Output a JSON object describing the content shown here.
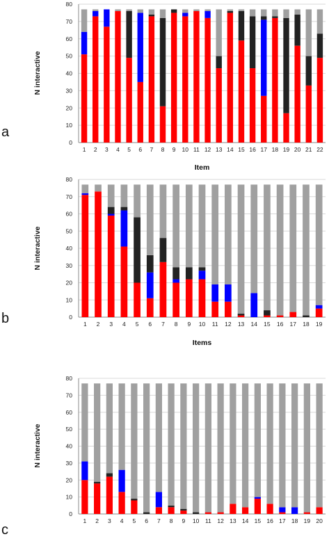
{
  "figure": {
    "panels": [
      "a",
      "b",
      "c"
    ]
  },
  "colors": {
    "red": "#ff0000",
    "blue": "#0000ff",
    "black": "#222222",
    "gray": "#a0a0a0",
    "grid": "#d8d8d8",
    "axis": "#888888"
  },
  "chart_data": [
    {
      "panel": "a",
      "type": "bar",
      "stacked": true,
      "ylabel": "N interactive",
      "xlabel": "Item",
      "ylim": [
        0,
        80
      ],
      "yticks": [
        0,
        10,
        20,
        30,
        40,
        50,
        60,
        70,
        80
      ],
      "grid": true,
      "categories": [
        "1",
        "2",
        "3",
        "4",
        "5",
        "6",
        "7",
        "8",
        "9",
        "10",
        "11",
        "12",
        "13",
        "14",
        "15",
        "16",
        "17",
        "18",
        "19",
        "20",
        "21",
        "22"
      ],
      "series": [
        {
          "color": "red",
          "values": [
            51,
            73,
            67,
            76,
            49,
            35,
            73,
            21,
            75,
            73,
            76,
            72,
            43,
            75,
            59,
            43,
            27,
            72,
            17,
            56,
            33,
            49
          ]
        },
        {
          "color": "blue",
          "values": [
            13,
            3,
            10,
            0,
            0,
            40,
            0,
            0,
            0,
            2,
            0,
            4,
            0,
            0,
            0,
            0,
            44,
            0,
            0,
            0,
            0,
            0
          ]
        },
        {
          "color": "black",
          "values": [
            0,
            0,
            0,
            0,
            27,
            0,
            1,
            51,
            2,
            0,
            0,
            0,
            7,
            1,
            17,
            30,
            2,
            1,
            55,
            18,
            17,
            14
          ]
        },
        {
          "color": "gray",
          "values": [
            13,
            1,
            0,
            1,
            1,
            2,
            3,
            5,
            0,
            2,
            1,
            1,
            27,
            1,
            1,
            4,
            4,
            4,
            5,
            3,
            27,
            14
          ]
        }
      ]
    },
    {
      "panel": "b",
      "type": "bar",
      "stacked": true,
      "ylabel": "N interactive",
      "xlabel": "Items",
      "ylim": [
        0,
        80
      ],
      "yticks": [
        0,
        10,
        20,
        30,
        40,
        50,
        60,
        70,
        80
      ],
      "grid": true,
      "categories": [
        "1",
        "2",
        "3",
        "4",
        "5",
        "6",
        "7",
        "8",
        "9",
        "10",
        "11",
        "12",
        "13",
        "14",
        "15",
        "16",
        "17",
        "18",
        "19"
      ],
      "series": [
        {
          "color": "red",
          "values": [
            71,
            73,
            59,
            41,
            20,
            11,
            32,
            20,
            22,
            22,
            9,
            9,
            1,
            0,
            1,
            1,
            3,
            0,
            5
          ]
        },
        {
          "color": "blue",
          "values": [
            1,
            0,
            1,
            21,
            0,
            15,
            0,
            2,
            0,
            5,
            10,
            10,
            0,
            14,
            0,
            0,
            0,
            0,
            2
          ]
        },
        {
          "color": "black",
          "values": [
            0,
            0,
            4,
            2,
            38,
            10,
            14,
            7,
            7,
            2,
            0,
            0,
            1,
            0,
            3,
            0,
            0,
            1,
            0
          ]
        },
        {
          "color": "gray",
          "values": [
            5,
            4,
            13,
            13,
            19,
            41,
            31,
            48,
            48,
            48,
            58,
            58,
            75,
            63,
            73,
            76,
            74,
            76,
            70
          ]
        }
      ]
    },
    {
      "panel": "c",
      "type": "bar",
      "stacked": true,
      "ylabel": "N interactive",
      "xlabel": "",
      "ylim": [
        0,
        80
      ],
      "yticks": [
        0,
        10,
        20,
        30,
        40,
        50,
        60,
        70,
        80
      ],
      "grid": true,
      "categories": [
        "1",
        "2",
        "3",
        "4",
        "5",
        "6",
        "7",
        "8",
        "9",
        "10",
        "11",
        "12",
        "13",
        "14",
        "15",
        "16",
        "17",
        "18",
        "19",
        "20"
      ],
      "series": [
        {
          "color": "red",
          "values": [
            20,
            18,
            22,
            13,
            8,
            0,
            4,
            4,
            2,
            0,
            1,
            1,
            6,
            4,
            9,
            6,
            1,
            0,
            1,
            4
          ]
        },
        {
          "color": "blue",
          "values": [
            11,
            0,
            0,
            13,
            0,
            0,
            9,
            0,
            0,
            0,
            0,
            0,
            0,
            0,
            1,
            0,
            3,
            4,
            0,
            0
          ]
        },
        {
          "color": "black",
          "values": [
            0,
            1,
            2,
            0,
            1,
            1,
            0,
            1,
            1,
            1,
            0,
            0,
            0,
            0,
            0,
            0,
            0,
            0,
            0,
            0
          ]
        },
        {
          "color": "gray",
          "values": [
            46,
            58,
            53,
            51,
            68,
            76,
            64,
            72,
            74,
            76,
            76,
            76,
            71,
            73,
            67,
            71,
            73,
            73,
            76,
            73
          ]
        }
      ]
    }
  ]
}
